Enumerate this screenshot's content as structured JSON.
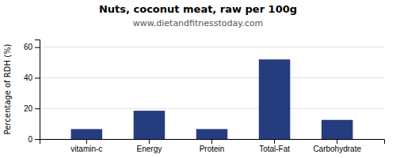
{
  "chart_data": {
    "type": "bar",
    "title": "Nuts, coconut meat, raw per 100g",
    "subtitle": "www.dietandfitnesstoday.com",
    "categories": [
      "vitamin-c",
      "Energy",
      "Protein",
      "Total-Fat",
      "Carbohydrate"
    ],
    "values": [
      6.5,
      18.5,
      6.5,
      52,
      12.5
    ],
    "color": "#253d7f",
    "ylabel": "Percentage of RDH (%)",
    "ylim": [
      0,
      65
    ],
    "yticks": [
      0,
      20,
      40,
      60
    ],
    "grid": true
  }
}
